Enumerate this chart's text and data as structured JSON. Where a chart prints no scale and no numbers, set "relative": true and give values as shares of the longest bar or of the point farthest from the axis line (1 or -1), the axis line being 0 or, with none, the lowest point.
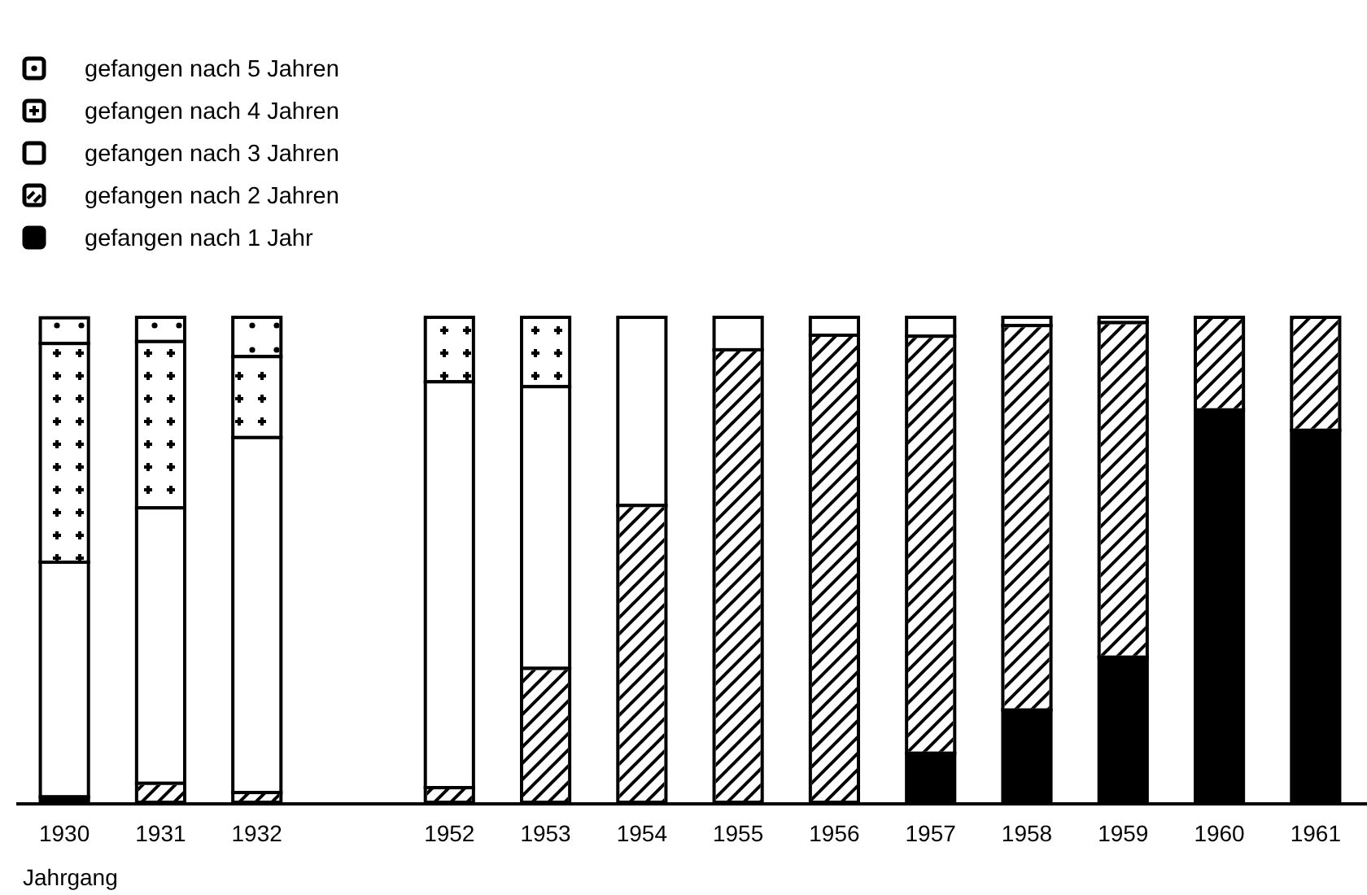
{
  "chart_data": {
    "type": "bar",
    "stacked": true,
    "relative": true,
    "xlabel": "Jahrgang",
    "legend": "top left",
    "categories": [
      "1930",
      "1931",
      "1932",
      null,
      "1952",
      "1953",
      "1954",
      "1955",
      "1956",
      "1957",
      "1958",
      "1959",
      "1960",
      "1961"
    ],
    "series": [
      {
        "name": "gefangen nach 1 Jahr",
        "color": "#000000",
        "values": [
          0.011,
          0,
          0,
          null,
          0,
          0,
          0,
          0,
          0,
          0.101,
          0.19,
          0.299,
          0.809,
          0.767
        ]
      },
      {
        "name": "gefangen nach 2 Jahren",
        "color": "#ffffff",
        "values": [
          0,
          0.039,
          0.02,
          null,
          0.03,
          0.276,
          0.612,
          0.933,
          0.963,
          0.86,
          0.793,
          0.69,
          0.191,
          0.233
        ]
      },
      {
        "name": "gefangen nach 3 Jahren",
        "color": "#ffffff",
        "values": [
          0.484,
          0.568,
          0.732,
          null,
          0.837,
          0.581,
          0.388,
          0.067,
          0.037,
          0.039,
          0.017,
          0.011,
          0,
          0
        ]
      },
      {
        "name": "gefangen nach 4 Jahren",
        "color": "#ffffff",
        "values": [
          0.451,
          0.343,
          0.167,
          null,
          0.133,
          0.143,
          0,
          0,
          0,
          0,
          0,
          0,
          0,
          0
        ]
      },
      {
        "name": "gefangen nach 5 Jahren",
        "color": "#ffffff",
        "values": [
          0.053,
          0.05,
          0.081,
          null,
          0,
          0,
          0,
          0,
          0,
          0,
          0,
          0,
          0,
          0
        ]
      }
    ]
  }
}
